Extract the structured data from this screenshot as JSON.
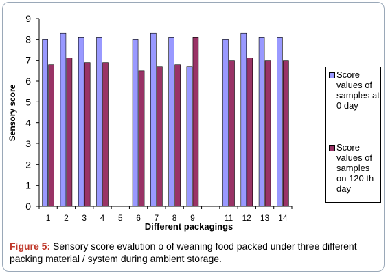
{
  "chart_data": {
    "type": "bar",
    "xlabel": "Different packagings",
    "ylabel": "Sensory score",
    "ylim": [
      0,
      9
    ],
    "yticks": [
      "0",
      "1",
      "2",
      "3",
      "4",
      "5",
      "6",
      "7",
      "8",
      "9"
    ],
    "grid": false,
    "legend_position": "right",
    "categories": [
      "1",
      "2",
      "3",
      "4",
      "5",
      "6",
      "7",
      "8",
      "9",
      "11",
      "12",
      "13",
      "14"
    ],
    "category_positions": [
      1,
      2,
      3,
      4,
      5,
      6,
      7,
      8,
      9,
      11,
      12,
      13,
      14
    ],
    "x_tick_labels": [
      "1",
      "2",
      "3",
      "4",
      "5",
      "6",
      "7",
      "8",
      "9",
      "11",
      "12",
      "13",
      "14"
    ],
    "series": [
      {
        "name": "Score values of samples at 0 day",
        "color": "#9999ff",
        "values": [
          8.0,
          8.3,
          8.1,
          8.1,
          null,
          8.0,
          8.3,
          8.1,
          6.7,
          8.0,
          8.3,
          8.1,
          8.1
        ]
      },
      {
        "name": "Score values of samples on 120 th day",
        "color": "#993366",
        "values": [
          6.8,
          7.1,
          6.9,
          6.9,
          null,
          6.5,
          6.7,
          6.8,
          8.1,
          7.0,
          7.1,
          7.0,
          7.0
        ]
      }
    ]
  },
  "caption": {
    "label": "Figure 5:",
    "text": " Sensory score evalution o of weaning food packed under three different packing material / system during  ambient  storage."
  }
}
